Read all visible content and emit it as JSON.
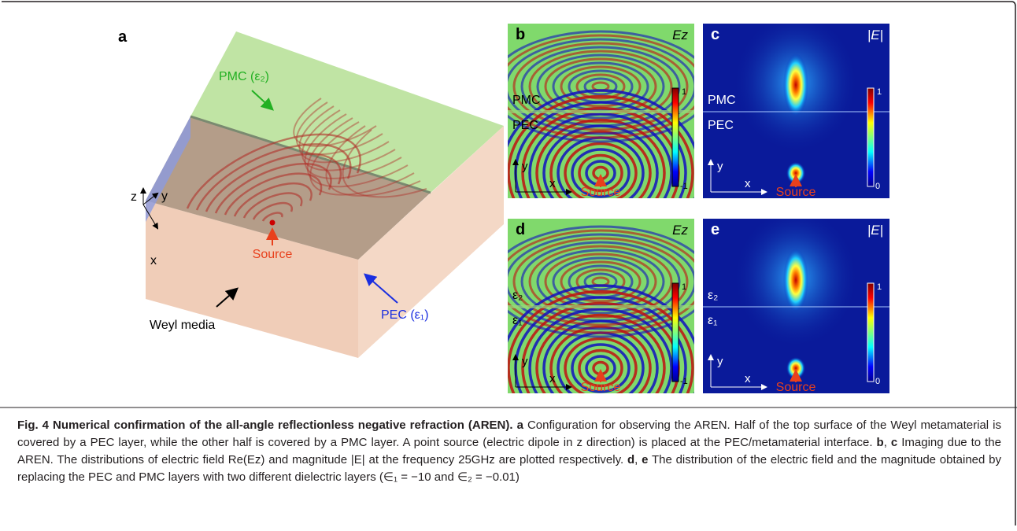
{
  "panel_a": {
    "label": "a",
    "pmc": "PMC (ε₂)",
    "pec": "PEC (ε₁)",
    "weyl": "Weyl media",
    "source": "Source",
    "z": "z",
    "y": "y",
    "x": "x"
  },
  "panel_b": {
    "label": "b",
    "field": "Ez",
    "top": "PMC",
    "bottom": "PEC",
    "cmax": "1",
    "cmin": "-1",
    "y": "y",
    "x": "x",
    "source": "Source"
  },
  "panel_c": {
    "label": "c",
    "field": "|E|",
    "top": "PMC",
    "bottom": "PEC",
    "cmax": "1",
    "cmin": "0",
    "y": "y",
    "x": "x",
    "source": "Source"
  },
  "panel_d": {
    "label": "d",
    "field": "Ez",
    "top": "ε₂",
    "bottom": "ε₁",
    "cmax": "1",
    "cmin": "-1",
    "y": "y",
    "x": "x",
    "source": "Source"
  },
  "panel_e": {
    "label": "e",
    "field": "|E|",
    "top": "ε₂",
    "bottom": "ε₁",
    "cmax": "1",
    "cmin": "0",
    "y": "y",
    "x": "x",
    "source": "Source"
  },
  "caption": {
    "title": "Fig. 4 Numerical confirmation of the all-angle reflectionless negative refraction (AREN).",
    "parts": [
      "a",
      " Configuration for observing the AREN. Half of the top surface of the Weyl metamaterial is covered by a PEC layer, while the other half is covered by a PMC layer. A point source (electric dipole in z direction) is placed at the PEC/metamaterial interface. ",
      "b",
      ", ",
      "c",
      " Imaging due to the AREN. The distributions of electric field Re(Ez) and magnitude |E| at the frequency 25GHz are plotted respectively. ",
      "d",
      ", ",
      "e",
      " The distribution of the electric field and the magnitude obtained by replacing the PEC and PMC layers with two different dielectric layers (∈₁ = −10 and ∈₂ = −0.01)"
    ]
  }
}
